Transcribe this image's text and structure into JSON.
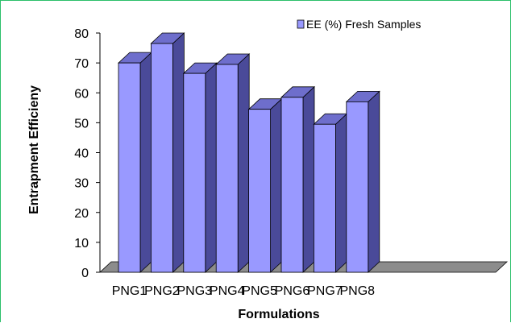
{
  "chart_data": {
    "type": "bar",
    "categories": [
      "PNG1",
      "PNG2",
      "PNG3",
      "PNG4",
      "PNG5",
      "PNG6",
      "PNG7",
      "PNG8"
    ],
    "series": [
      {
        "name": "EE (%) Fresh Samples",
        "values": [
          70,
          76.5,
          66.5,
          69.5,
          54.5,
          58.5,
          49.5,
          57
        ]
      }
    ],
    "xlabel": "Formulations",
    "ylabel": "Entrapment Efficieny",
    "ylim": [
      0,
      80
    ],
    "yticks": [
      "0",
      "10",
      "20",
      "30",
      "40",
      "50",
      "60",
      "70",
      "80"
    ],
    "grid": false,
    "legend_position": "top-right",
    "colors": {
      "bar_front": "#9999ff",
      "bar_side": "#4a4a99",
      "bar_top": "#6e6ecc",
      "floor": "#8c8c8c",
      "frame": "#2bbf6a"
    }
  }
}
